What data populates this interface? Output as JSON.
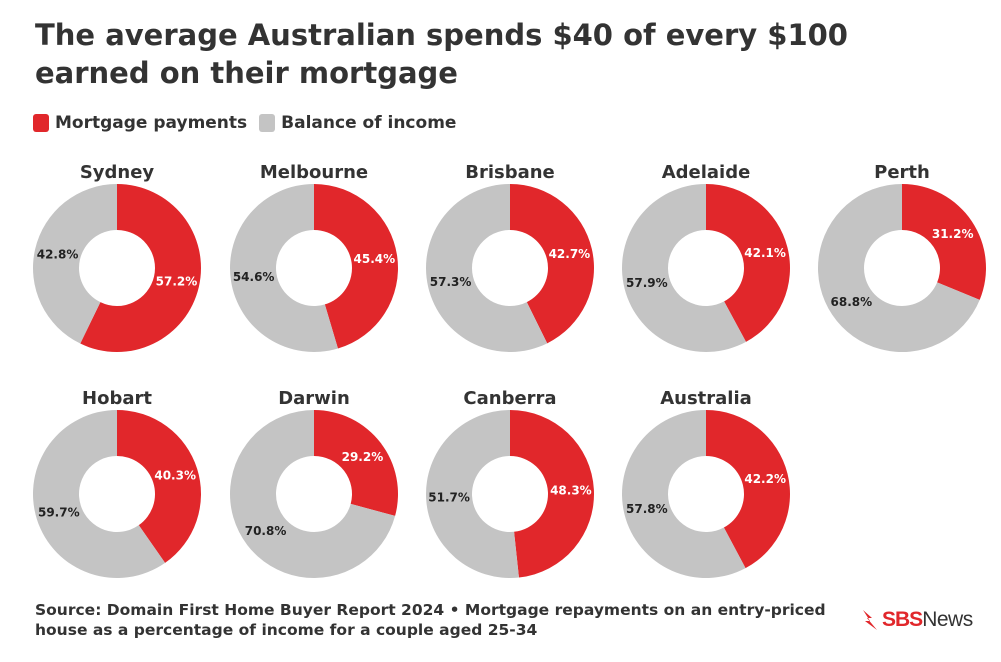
{
  "title": "The average Australian spends $40 of every $100 earned on their mortgage",
  "legend": [
    {
      "label": "Mortgage payments",
      "color": "#e1272b"
    },
    {
      "label": "Balance of income",
      "color": "#c4c4c4"
    }
  ],
  "footer": {
    "source": "Source: Domain First Home Buyer Report 2024 • Mortgage repayments on an entry-priced house as a percentage of income for a couple aged 25-34"
  },
  "logo": {
    "brand": "SBS",
    "product": "News",
    "mark_icon": "sbs-comet-icon"
  },
  "colors": {
    "mortgage": "#e1272b",
    "balance": "#c4c4c4"
  },
  "chart_data": {
    "type": "pie",
    "variant": "donut",
    "series": [
      "Mortgage payments",
      "Balance of income"
    ],
    "charts": [
      {
        "city": "Sydney",
        "mortgage": 57.2,
        "balance": 42.8,
        "mortgage_label": "57.2%",
        "balance_label": "42.8%"
      },
      {
        "city": "Melbourne",
        "mortgage": 45.4,
        "balance": 54.6,
        "mortgage_label": "45.4%",
        "balance_label": "54.6%"
      },
      {
        "city": "Brisbane",
        "mortgage": 42.7,
        "balance": 57.3,
        "mortgage_label": "42.7%",
        "balance_label": "57.3%"
      },
      {
        "city": "Adelaide",
        "mortgage": 42.1,
        "balance": 57.9,
        "mortgage_label": "42.1%",
        "balance_label": "57.9%"
      },
      {
        "city": "Perth",
        "mortgage": 31.2,
        "balance": 68.8,
        "mortgage_label": "31.2%",
        "balance_label": "68.8%"
      },
      {
        "city": "Hobart",
        "mortgage": 40.3,
        "balance": 59.7,
        "mortgage_label": "40.3%",
        "balance_label": "59.7%"
      },
      {
        "city": "Darwin",
        "mortgage": 29.2,
        "balance": 70.8,
        "mortgage_label": "29.2%",
        "balance_label": "70.8%"
      },
      {
        "city": "Canberra",
        "mortgage": 48.3,
        "balance": 51.7,
        "mortgage_label": "48.3%",
        "balance_label": "51.7%"
      },
      {
        "city": "Australia",
        "mortgage": 42.2,
        "balance": 57.8,
        "mortgage_label": "42.2%",
        "balance_label": "57.8%"
      }
    ]
  }
}
